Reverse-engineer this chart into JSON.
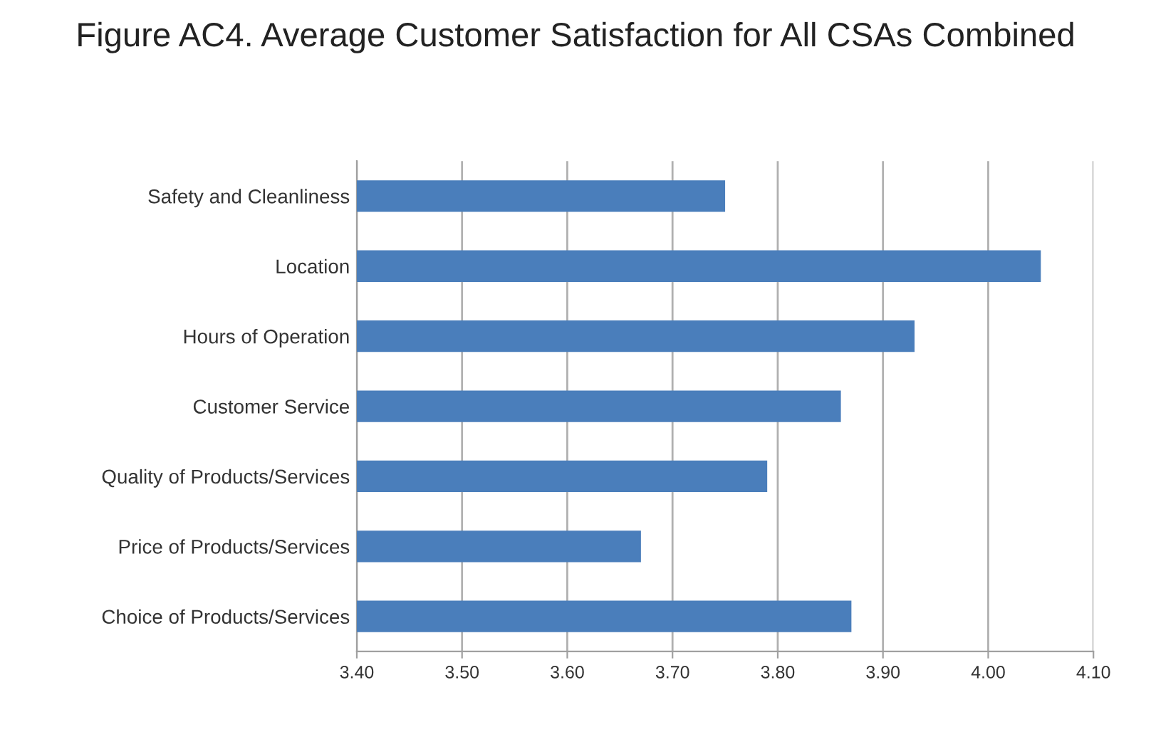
{
  "chart_data": {
    "type": "bar",
    "orientation": "horizontal",
    "title": "Figure AC4. Average Customer Satisfaction for All CSAs Combined",
    "categories": [
      "Safety and Cleanliness",
      "Location",
      "Hours of Operation",
      "Customer Service",
      "Quality of Products/Services",
      "Price of Products/Services",
      "Choice of Products/Services"
    ],
    "values": [
      3.75,
      4.05,
      3.93,
      3.86,
      3.79,
      3.67,
      3.87
    ],
    "color": "#4a7ebb",
    "xlim": [
      3.4,
      4.1
    ],
    "xticks": [
      {
        "value": 3.4,
        "label": "3.40"
      },
      {
        "value": 3.5,
        "label": "3.50"
      },
      {
        "value": 3.6,
        "label": "3.60"
      },
      {
        "value": 3.7,
        "label": "3.70"
      },
      {
        "value": 3.8,
        "label": "3.80"
      },
      {
        "value": 3.9,
        "label": "3.90"
      },
      {
        "value": 4.0,
        "label": "4.00"
      },
      {
        "value": 4.1,
        "label": "4.10"
      }
    ],
    "grid": "x"
  }
}
